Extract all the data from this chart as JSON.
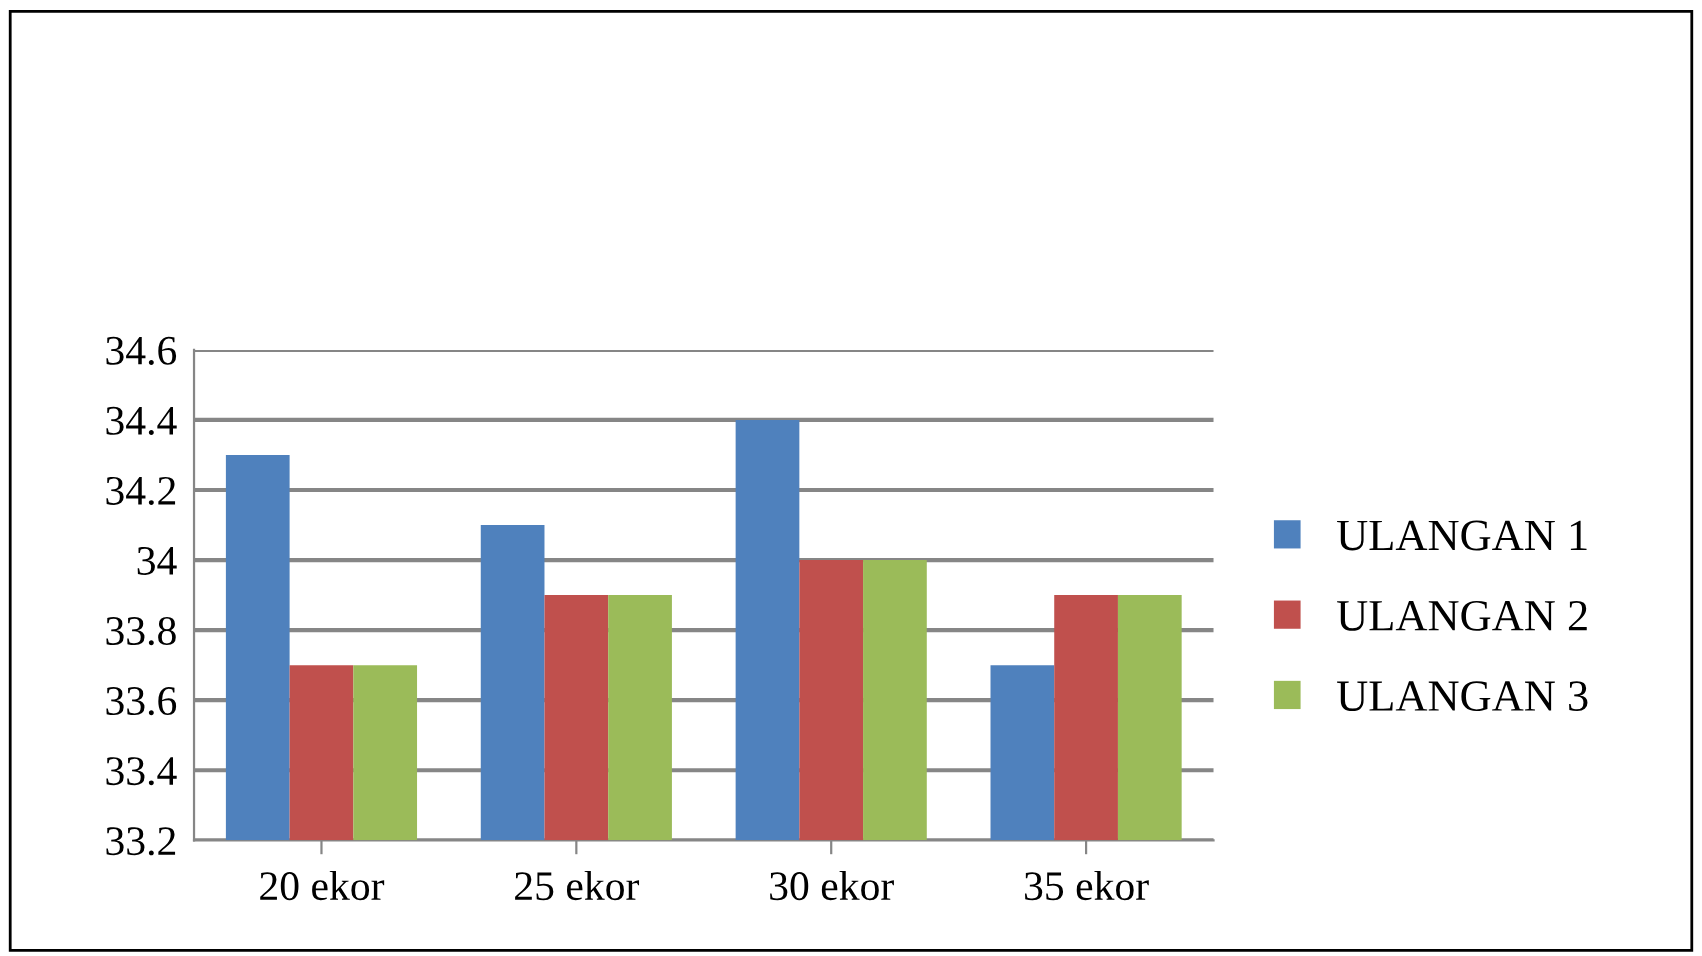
{
  "chart_data": {
    "type": "bar",
    "categories": [
      "20 ekor",
      "25 ekor",
      "30 ekor",
      "35 ekor"
    ],
    "series": [
      {
        "name": "ULANGAN 1",
        "color": "#4f81bd",
        "values": [
          34.3,
          34.1,
          34.4,
          33.7
        ]
      },
      {
        "name": "ULANGAN 2",
        "color": "#c0504d",
        "values": [
          33.7,
          33.9,
          34.0,
          33.9
        ]
      },
      {
        "name": "ULANGAN 3",
        "color": "#9bbb59",
        "values": [
          33.7,
          33.9,
          34.0,
          33.9
        ]
      }
    ],
    "ylim": [
      33.2,
      34.6
    ],
    "yticks": [
      33.2,
      33.4,
      33.6,
      33.8,
      34,
      34.2,
      34.4,
      34.6
    ],
    "grid": "y",
    "legend": "right"
  }
}
